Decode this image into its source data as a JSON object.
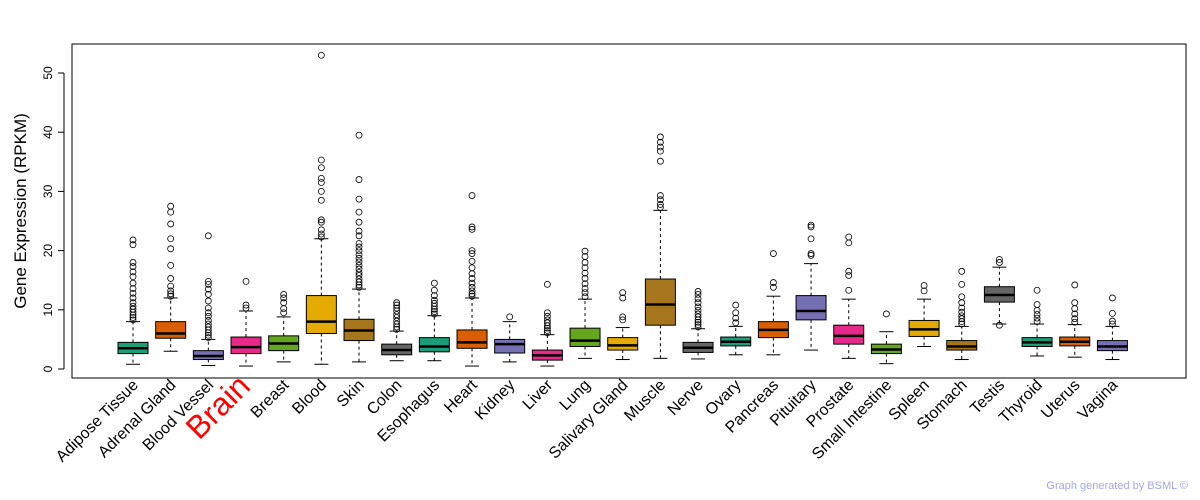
{
  "chart_data": {
    "type": "box",
    "ylabel": "Gene Expression (RPKM)",
    "ylim": [
      0,
      55
    ],
    "yticks": [
      0,
      10,
      20,
      30,
      40,
      50
    ],
    "highlight": "Brain",
    "highlight_color": "#ff0000",
    "categories": [
      {
        "name": "Adipose Tissue",
        "color": "#1b9e77",
        "q1": 2.6,
        "median": 3.5,
        "q3": 4.5,
        "whisker_low": 0.8,
        "whisker_high": 8.0,
        "outliers": [
          8.3,
          8.7,
          9.1,
          9.6,
          10.1,
          10.6,
          11.2,
          12.0,
          12.8,
          13.6,
          14.5,
          15.6,
          16.4,
          17.3,
          18.0,
          21.0,
          21.8
        ]
      },
      {
        "name": "Adrenal Gland",
        "color": "#d95f02",
        "q1": 5.2,
        "median": 6.0,
        "q3": 8.0,
        "whisker_low": 3.0,
        "whisker_high": 12.0,
        "outliers": [
          12.3,
          12.7,
          13.2,
          14.0,
          15.3,
          17.5,
          20.3,
          22.0,
          24.5,
          26.5,
          27.5
        ]
      },
      {
        "name": "Blood Vessel",
        "color": "#7570b3",
        "q1": 1.6,
        "median": 2.2,
        "q3": 3.1,
        "whisker_low": 0.6,
        "whisker_high": 5.0,
        "outliers": [
          5.3,
          5.7,
          6.1,
          6.6,
          7.1,
          7.6,
          8.2,
          8.9,
          9.5,
          10.3,
          11.5,
          12.6,
          13.5,
          14.3,
          14.8,
          22.5
        ]
      },
      {
        "name": "Brain",
        "color": "#e7298a",
        "q1": 2.6,
        "median": 3.7,
        "q3": 5.4,
        "whisker_low": 0.5,
        "whisker_high": 9.8,
        "outliers": [
          10.3,
          10.8,
          14.8
        ]
      },
      {
        "name": "Breast",
        "color": "#66a61e",
        "q1": 3.1,
        "median": 4.3,
        "q3": 5.6,
        "whisker_low": 1.2,
        "whisker_high": 8.8,
        "outliers": [
          9.5,
          10.2,
          11.2,
          12.0,
          12.6
        ]
      },
      {
        "name": "Blood",
        "color": "#e6ab02",
        "q1": 6.0,
        "median": 8.0,
        "q3": 12.4,
        "whisker_low": 0.8,
        "whisker_high": 22.0,
        "outliers": [
          22.3,
          22.8,
          23.5,
          24.8,
          25.2,
          28.5,
          30.0,
          31.5,
          32.2,
          34.0,
          35.3,
          53.0
        ]
      },
      {
        "name": "Skin",
        "color": "#a6761d",
        "q1": 4.8,
        "median": 6.5,
        "q3": 8.4,
        "whisker_low": 1.2,
        "whisker_high": 13.5,
        "outliers": [
          13.8,
          14.2,
          14.7,
          15.2,
          15.8,
          16.3,
          16.9,
          17.5,
          18.1,
          18.7,
          19.3,
          20.0,
          20.6,
          21.2,
          22.5,
          23.3,
          24.8,
          26.5,
          28.7,
          32.0,
          39.5
        ]
      },
      {
        "name": "Colon",
        "color": "#666666",
        "q1": 2.4,
        "median": 3.2,
        "q3": 4.2,
        "whisker_low": 1.4,
        "whisker_high": 6.4,
        "outliers": [
          6.7,
          7.1,
          7.6,
          8.1,
          8.7,
          9.2,
          9.8,
          10.3,
          10.8,
          11.2
        ]
      },
      {
        "name": "Esophagus",
        "color": "#1b9e77",
        "q1": 2.9,
        "median": 3.8,
        "q3": 5.3,
        "whisker_low": 1.4,
        "whisker_high": 9.0,
        "outliers": [
          9.3,
          9.7,
          10.1,
          10.6,
          11.1,
          11.6,
          12.4,
          13.3,
          14.5
        ]
      },
      {
        "name": "Heart",
        "color": "#d95f02",
        "q1": 3.5,
        "median": 4.5,
        "q3": 6.6,
        "whisker_low": 0.5,
        "whisker_high": 12.0,
        "outliers": [
          12.3,
          12.7,
          13.2,
          13.8,
          14.5,
          15.3,
          16.1,
          17.1,
          18.2,
          19.5,
          20.0,
          23.6,
          24.0,
          29.3
        ]
      },
      {
        "name": "Kidney",
        "color": "#7570b3",
        "q1": 2.7,
        "median": 4.2,
        "q3": 5.0,
        "whisker_low": 1.2,
        "whisker_high": 8.0,
        "outliers": [
          8.8
        ]
      },
      {
        "name": "Liver",
        "color": "#e7298a",
        "q1": 1.5,
        "median": 2.3,
        "q3": 3.2,
        "whisker_low": 0.5,
        "whisker_high": 5.8,
        "outliers": [
          6.1,
          6.5,
          6.9,
          7.3,
          7.8,
          8.3,
          8.9,
          9.5,
          14.3
        ]
      },
      {
        "name": "Lung",
        "color": "#66a61e",
        "q1": 3.8,
        "median": 4.8,
        "q3": 6.9,
        "whisker_low": 1.8,
        "whisker_high": 11.8,
        "outliers": [
          12.2,
          12.9,
          13.6,
          14.4,
          15.3,
          16.2,
          17.1,
          18.0,
          19.0,
          19.9
        ]
      },
      {
        "name": "Salivary Gland",
        "color": "#e6ab02",
        "q1": 3.2,
        "median": 4.0,
        "q3": 5.3,
        "whisker_low": 1.6,
        "whisker_high": 7.0,
        "outliers": [
          8.3,
          8.8,
          12.0,
          12.9
        ]
      },
      {
        "name": "Muscle",
        "color": "#a6761d",
        "q1": 7.4,
        "median": 10.9,
        "q3": 15.2,
        "whisker_low": 1.8,
        "whisker_high": 26.8,
        "outliers": [
          27.3,
          27.8,
          28.6,
          29.3,
          35.1,
          36.8,
          37.5,
          38.3,
          39.2
        ]
      },
      {
        "name": "Nerve",
        "color": "#666666",
        "q1": 2.8,
        "median": 3.6,
        "q3": 4.5,
        "whisker_low": 1.7,
        "whisker_high": 6.8,
        "outliers": [
          7.1,
          7.5,
          7.9,
          8.3,
          8.8,
          9.3,
          9.9,
          10.5,
          11.2,
          11.9,
          12.6,
          13.1
        ]
      },
      {
        "name": "Ovary",
        "color": "#1b9e77",
        "q1": 3.9,
        "median": 4.6,
        "q3": 5.4,
        "whisker_low": 2.4,
        "whisker_high": 7.2,
        "outliers": [
          7.8,
          8.6,
          9.5,
          10.8
        ]
      },
      {
        "name": "Pancreas",
        "color": "#d95f02",
        "q1": 5.3,
        "median": 6.6,
        "q3": 8.0,
        "whisker_low": 2.4,
        "whisker_high": 12.3,
        "outliers": [
          13.8,
          14.6,
          19.5
        ]
      },
      {
        "name": "Pituitary",
        "color": "#7570b3",
        "q1": 8.3,
        "median": 9.8,
        "q3": 12.4,
        "whisker_low": 3.2,
        "whisker_high": 17.8,
        "outliers": [
          19.2,
          19.5,
          22.0,
          24.0,
          24.3
        ]
      },
      {
        "name": "Prostate",
        "color": "#e7298a",
        "q1": 4.2,
        "median": 5.6,
        "q3": 7.4,
        "whisker_low": 1.8,
        "whisker_high": 11.8,
        "outliers": [
          13.3,
          15.8,
          16.5,
          21.3,
          22.3
        ]
      },
      {
        "name": "Small Intestine",
        "color": "#66a61e",
        "q1": 2.6,
        "median": 3.3,
        "q3": 4.2,
        "whisker_low": 0.9,
        "whisker_high": 6.3,
        "outliers": [
          9.3
        ]
      },
      {
        "name": "Spleen",
        "color": "#e6ab02",
        "q1": 5.5,
        "median": 6.7,
        "q3": 8.2,
        "whisker_low": 3.8,
        "whisker_high": 11.8,
        "outliers": [
          13.2,
          14.1
        ]
      },
      {
        "name": "Stomach",
        "color": "#a6761d",
        "q1": 3.2,
        "median": 3.8,
        "q3": 4.8,
        "whisker_low": 1.6,
        "whisker_high": 7.2,
        "outliers": [
          7.6,
          8.0,
          8.5,
          9.0,
          9.6,
          10.3,
          11.2,
          12.2,
          14.3,
          16.5
        ]
      },
      {
        "name": "Testis",
        "color": "#666666",
        "q1": 11.3,
        "median": 12.5,
        "q3": 13.9,
        "whisker_low": 7.6,
        "whisker_high": 17.2,
        "outliers": [
          18.0,
          18.5,
          7.4
        ]
      },
      {
        "name": "Thyroid",
        "color": "#1b9e77",
        "q1": 3.8,
        "median": 4.5,
        "q3": 5.3,
        "whisker_low": 2.2,
        "whisker_high": 7.6,
        "outliers": [
          8.0,
          8.6,
          9.2,
          9.9,
          10.9,
          13.3
        ]
      },
      {
        "name": "Uterus",
        "color": "#d95f02",
        "q1": 3.9,
        "median": 4.6,
        "q3": 5.4,
        "whisker_low": 2.0,
        "whisker_high": 7.5,
        "outliers": [
          7.9,
          8.5,
          9.3,
          10.2,
          11.2,
          14.2
        ]
      },
      {
        "name": "Vagina",
        "color": "#7570b3",
        "q1": 3.1,
        "median": 3.8,
        "q3": 4.8,
        "whisker_low": 1.6,
        "whisker_high": 7.2,
        "outliers": [
          7.6,
          8.1,
          9.4,
          12.0
        ]
      }
    ]
  },
  "footer": {
    "credit": "Graph generated by BSML ©"
  }
}
